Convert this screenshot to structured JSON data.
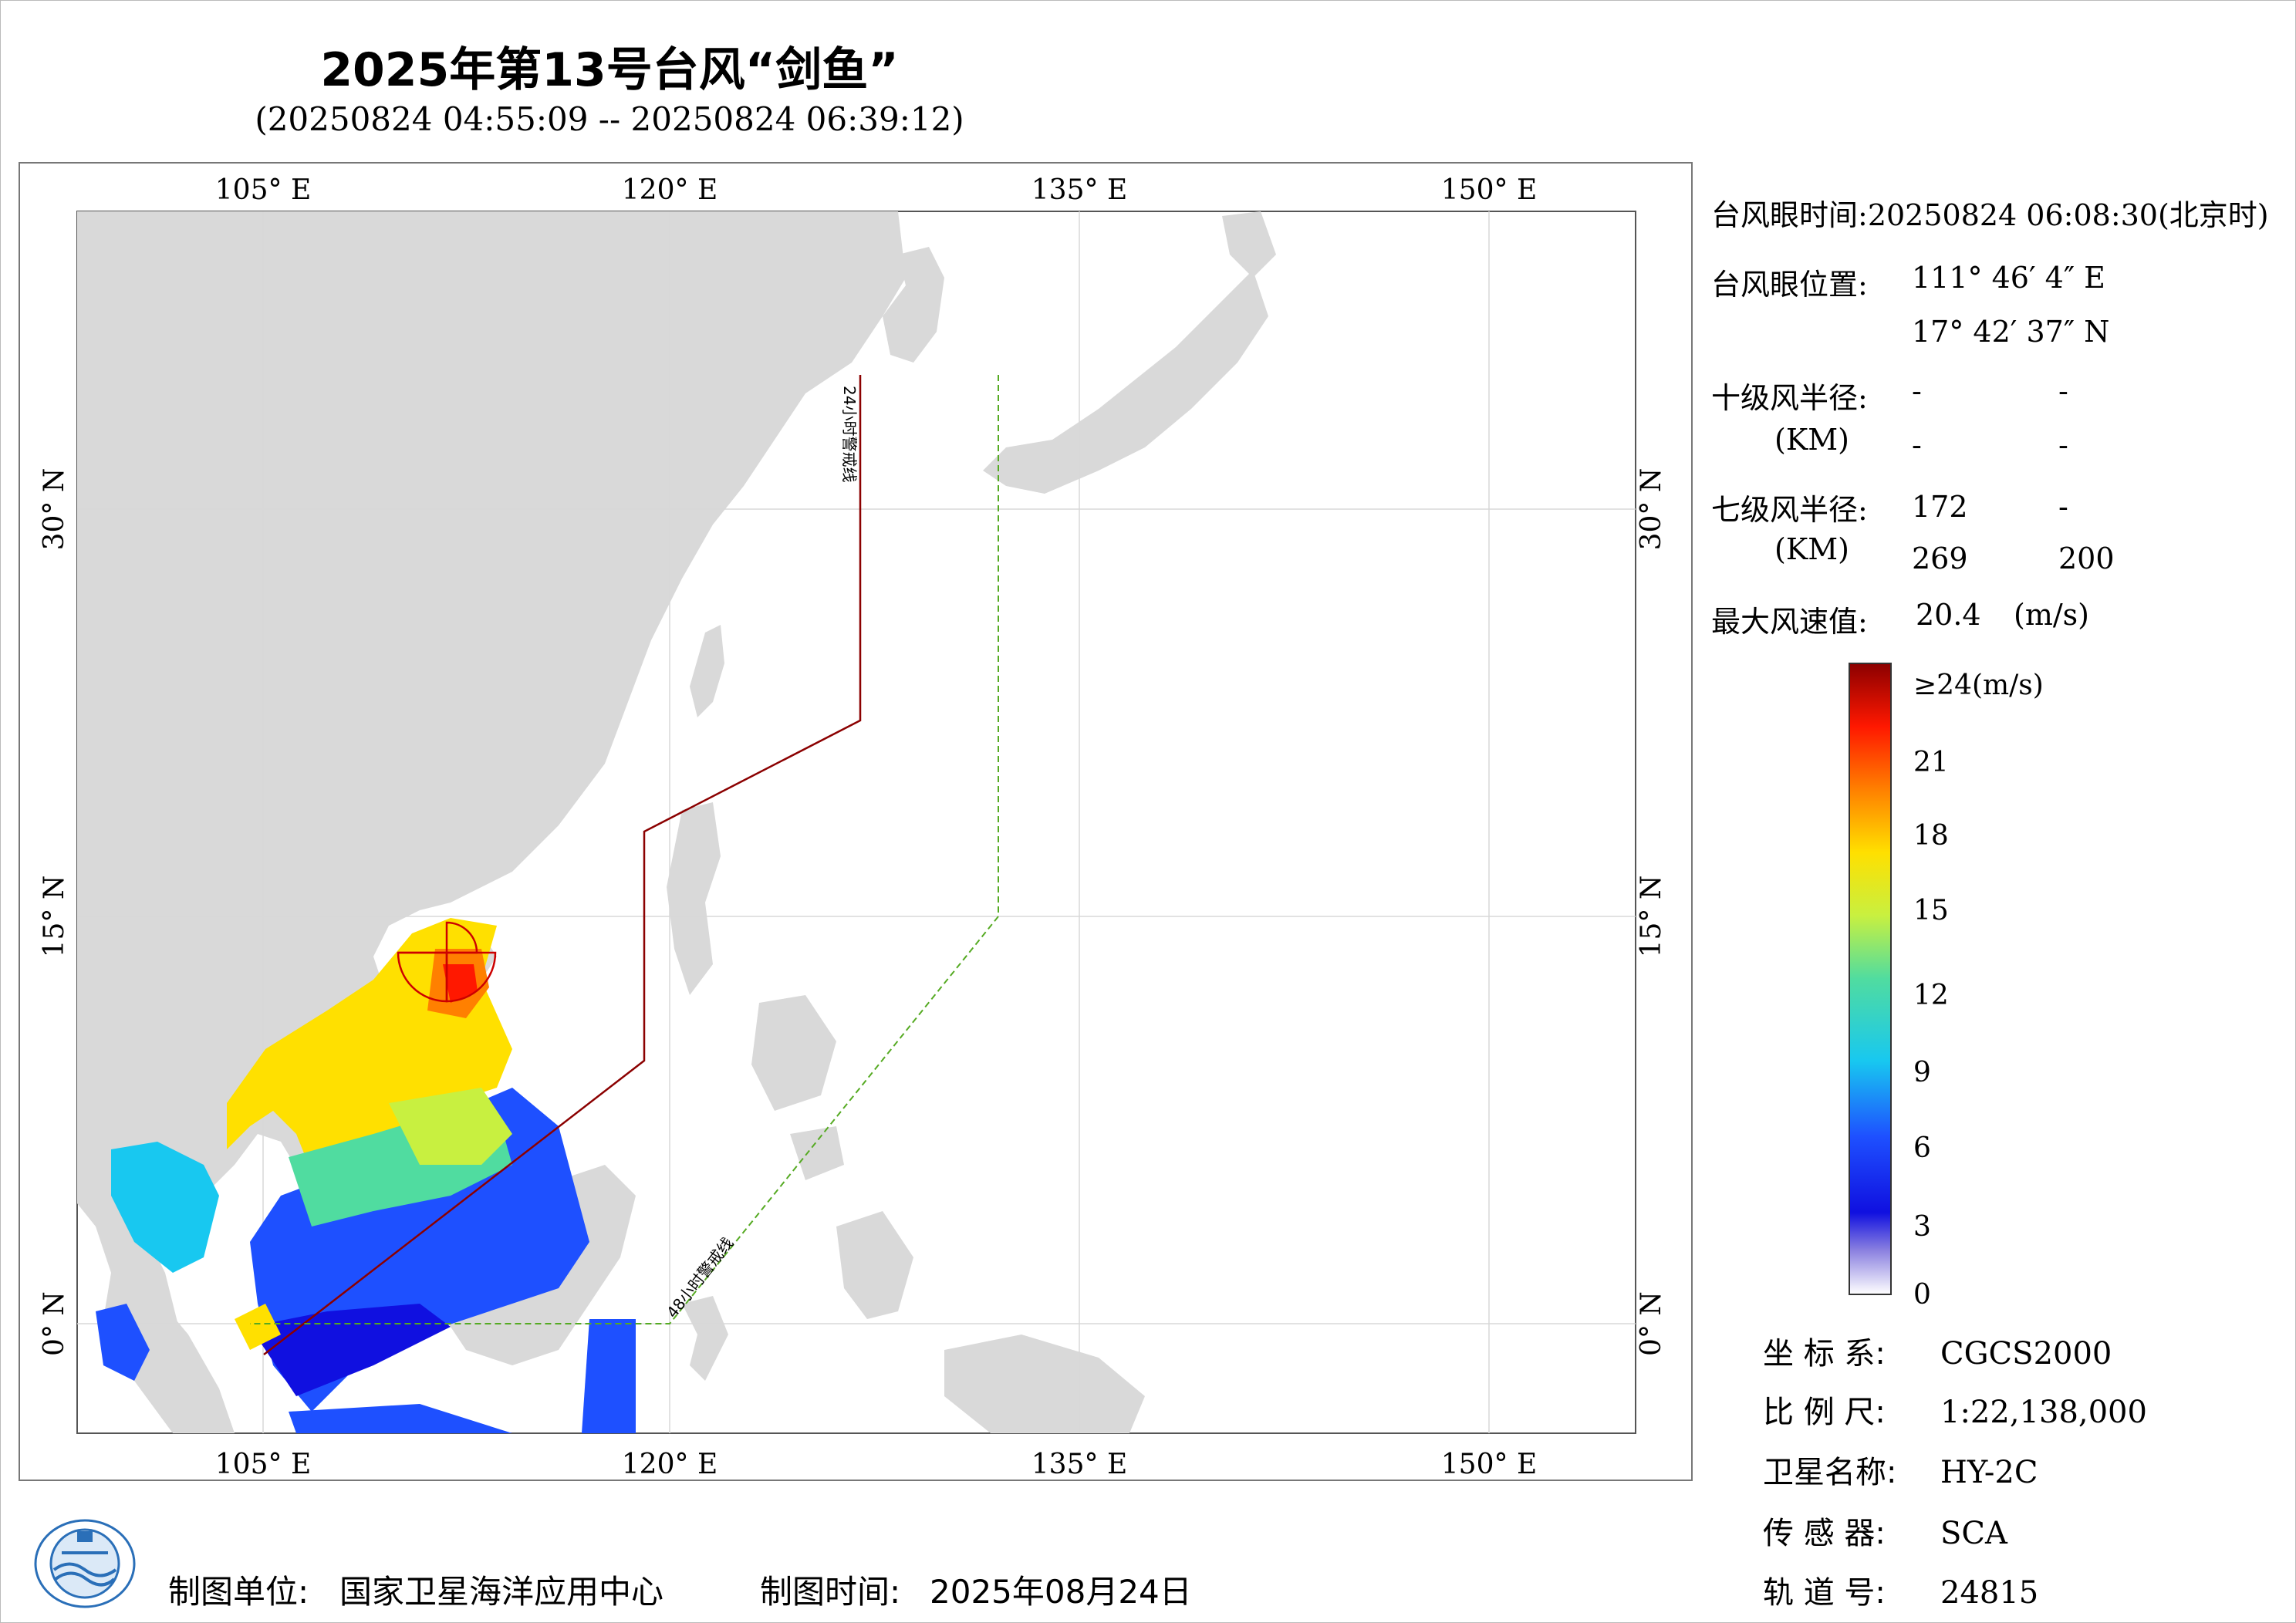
{
  "title": "2025年第13号台风“剑鱼”",
  "subtitle": "(20250824 04:55:09 -- 20250824 06:39:12)",
  "map": {
    "lon_ticks_top": [
      "105° E",
      "120° E",
      "135° E",
      "150° E"
    ],
    "lon_ticks_bottom": [
      "105° E",
      "120° E",
      "135° E",
      "150° E"
    ],
    "lat_ticks_left": [
      "30° N",
      "15° N",
      "0° N"
    ],
    "lat_ticks_right": [
      "30° N",
      "15° N",
      "0° N"
    ],
    "line_24h_label": "24小时警戒线",
    "line_48h_label": "48小时警戒线",
    "colors": {
      "land": "#d9d9d9",
      "sea": "#ffffff",
      "line_24h": "#8b0000",
      "line_48h": "#55aa22",
      "grid": "#d8d8d8"
    }
  },
  "info": {
    "eye_time_label": "台风眼时间:",
    "eye_time": "20250824 06:08:30(北京时)",
    "eye_pos_label": "台风眼位置:",
    "eye_lon": "111° 46′ 4″ E",
    "eye_lat": "17° 42′ 37″ N",
    "r10_label": "十级风半径:",
    "r10_unit": "(KM)",
    "r10_values": [
      "-",
      "-",
      "-",
      "-"
    ],
    "r7_label": "七级风半径:",
    "r7_unit": "(KM)",
    "r7_values": [
      "172",
      "-",
      "269",
      "200"
    ],
    "max_wind_label": "最大风速值:",
    "max_wind_value": "20.4",
    "max_wind_unit": "(m/s)"
  },
  "colorbar": {
    "labels": [
      "≥24(m/s)",
      "21",
      "18",
      "15",
      "12",
      "9",
      "6",
      "3",
      "0"
    ]
  },
  "meta": {
    "crs_label": "坐 标 系:",
    "crs_value": "CGCS2000",
    "scale_label": "比 例 尺:",
    "scale_value": "1:22,138,000",
    "satellite_label": "卫星名称:",
    "satellite_value": "HY-2C",
    "sensor_label": "传 感 器:",
    "sensor_value": "SCA",
    "orbit_label": "轨 道 号:",
    "orbit_value": "24815"
  },
  "footer": {
    "org_label": "制图单位:",
    "org_value": "国家卫星海洋应用中心",
    "time_label": "制图时间:",
    "time_value": "2025年08月24日"
  }
}
